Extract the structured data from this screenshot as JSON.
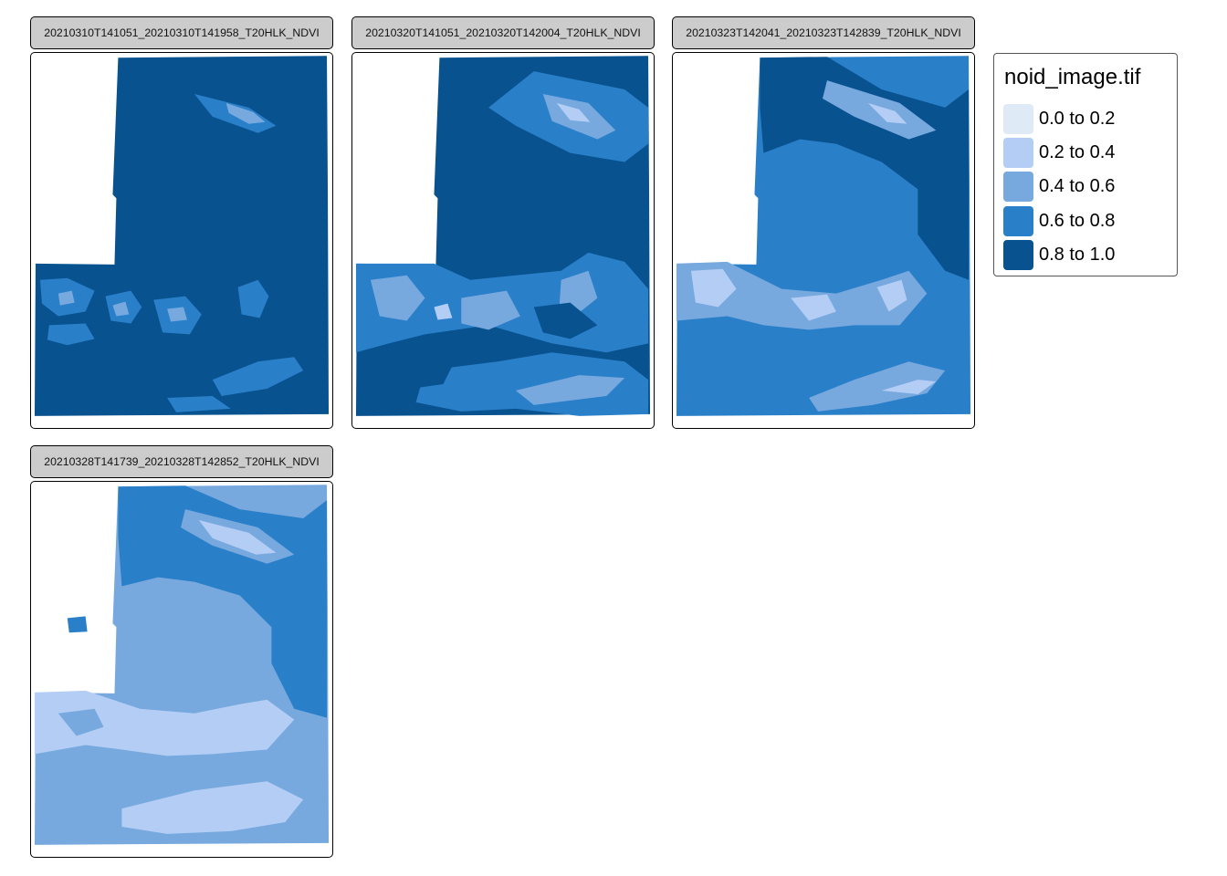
{
  "legend": {
    "title": "noid_image.tif",
    "items": [
      {
        "label": "0.0 to 0.2",
        "color": "#deebf7"
      },
      {
        "label": "0.2 to 0.4",
        "color": "#b3cdf5"
      },
      {
        "label": "0.4 to 0.6",
        "color": "#77a9df"
      },
      {
        "label": "0.6 to 0.8",
        "color": "#2a7fc9"
      },
      {
        "label": "0.8 to 1.0",
        "color": "#08528f"
      }
    ]
  },
  "facets": [
    {
      "label": "20210310T141051_20210310T141958_T20HLK_NDVI",
      "dominant_class": "0.8 to 1.0"
    },
    {
      "label": "20210320T141051_20210320T142004_T20HLK_NDVI",
      "dominant_class": "0.8 to 1.0"
    },
    {
      "label": "20210323T142041_20210323T142839_T20HLK_NDVI",
      "dominant_class": "0.6 to 0.8"
    },
    {
      "label": "20210328T141739_20210328T142852_T20HLK_NDVI",
      "dominant_class": "0.4 to 0.6"
    }
  ]
}
